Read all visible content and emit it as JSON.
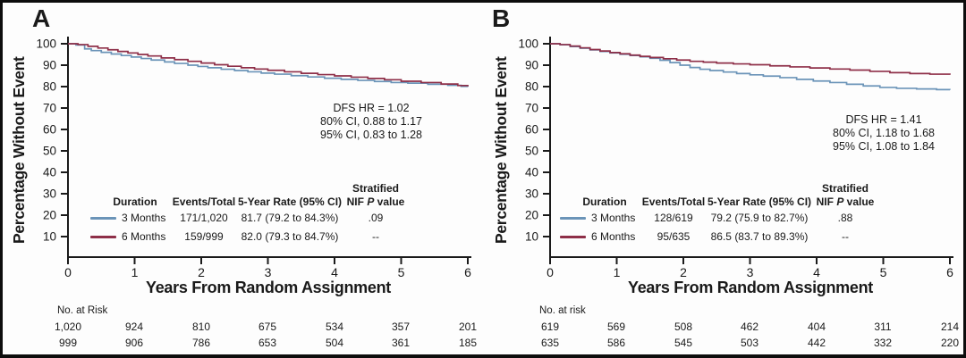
{
  "figure": {
    "panels": [
      {
        "label": "A",
        "y_axis": {
          "title": "Percentage Without Event"
        },
        "x_axis": {
          "title": "Years From Random Assignment"
        },
        "annotation": [
          "DFS HR = 1.02",
          "80% CI, 0.88 to 1.17",
          "95% CI, 0.83 to 1.28"
        ],
        "table": {
          "headers": {
            "stratified": "Stratified",
            "duration": "Duration",
            "events": "Events/Total",
            "rate": "5-Year Rate (95% CI)",
            "nif": "NIF",
            "p": "P",
            "value": "value"
          },
          "rows": [
            {
              "duration": "3 Months",
              "events": "171/1,020",
              "rate": "81.7 (79.2 to 84.3%)",
              "p": ".09"
            },
            {
              "duration": "6 Months",
              "events": "159/999",
              "rate": "82.0 (79.3 to 84.7%)",
              "p": "--"
            }
          ]
        },
        "risk": {
          "label": "No. at Risk",
          "rows": [
            [
              "1,020",
              "924",
              "810",
              "675",
              "534",
              "357",
              "201"
            ],
            [
              "999",
              "906",
              "786",
              "653",
              "504",
              "361",
              "185"
            ]
          ]
        }
      },
      {
        "label": "B",
        "y_axis": {
          "title": "Percentage Without Event"
        },
        "x_axis": {
          "title": "Years From Random Assignment"
        },
        "annotation": [
          "DFS HR = 1.41",
          "80% CI, 1.18 to 1.68",
          "95% CI, 1.08 to 1.84"
        ],
        "table": {
          "headers": {
            "stratified": "Stratified",
            "duration": "Duration",
            "events": "Events/Total",
            "rate": "5-Year Rate (95% CI)",
            "nif": "NIF",
            "p": "P",
            "value": "value"
          },
          "rows": [
            {
              "duration": "3 Months",
              "events": "128/619",
              "rate": "79.2 (75.9 to 82.7%)",
              "p": ".88"
            },
            {
              "duration": "6 Months",
              "events": "95/635",
              "rate": "86.5 (83.7 to 89.3%)",
              "p": "--"
            }
          ]
        },
        "risk": {
          "label": "No. at risk",
          "rows": [
            [
              "619",
              "569",
              "508",
              "462",
              "404",
              "311",
              "214"
            ],
            [
              "635",
              "586",
              "545",
              "503",
              "442",
              "332",
              "220"
            ]
          ]
        }
      }
    ]
  },
  "colors": {
    "three_months": "#6b94b8",
    "six_months": "#8e2f48",
    "axis": "#1a1a1a"
  },
  "chart_data": [
    {
      "type": "line",
      "subtype": "kaplan-meier-step",
      "title": "A",
      "xlabel": "Years From Random Assignment",
      "ylabel": "Percentage Without Event",
      "xlim": [
        0,
        6
      ],
      "ylim": [
        0,
        100
      ],
      "xticks": [
        0,
        1,
        2,
        3,
        4,
        5,
        6
      ],
      "yticks": [
        100,
        90,
        80,
        70,
        60,
        50,
        40,
        30,
        20,
        10
      ],
      "grid": false,
      "legend_position": "bottom-left table",
      "annotations": [
        "DFS HR = 1.02",
        "80% CI, 0.88 to 1.17",
        "95% CI, 0.83 to 1.28"
      ],
      "series": [
        {
          "name": "3 Months",
          "color": "#6b94b8",
          "events_total": "171/1,020",
          "five_year_rate": "81.7 (79.2 to 84.3%)",
          "p_value": ".09",
          "x": [
            0,
            0.12,
            0.25,
            0.35,
            0.5,
            0.65,
            0.8,
            0.95,
            1.1,
            1.25,
            1.45,
            1.6,
            1.8,
            1.95,
            2.1,
            2.3,
            2.5,
            2.7,
            2.9,
            3.1,
            3.35,
            3.6,
            3.85,
            4.1,
            4.35,
            4.6,
            4.85,
            5.1,
            5.4,
            5.7,
            5.9,
            6
          ],
          "y": [
            100,
            99.4,
            97.6,
            96.8,
            96,
            95.2,
            94.5,
            93.8,
            93.1,
            92.4,
            91.5,
            90.8,
            90,
            89.4,
            88.8,
            88.1,
            87.5,
            86.9,
            86.3,
            85.8,
            85.1,
            84.5,
            83.9,
            83.4,
            82.9,
            82.4,
            81.9,
            81.6,
            81.1,
            80.6,
            80.1,
            79.9
          ]
        },
        {
          "name": "6 Months",
          "color": "#8e2f48",
          "events_total": "159/999",
          "five_year_rate": "82.0 (79.3 to 84.7%)",
          "p_value": "--",
          "x": [
            0,
            0.15,
            0.3,
            0.45,
            0.6,
            0.75,
            0.9,
            1.05,
            1.2,
            1.4,
            1.6,
            1.8,
            2,
            2.2,
            2.4,
            2.6,
            2.8,
            3,
            3.25,
            3.5,
            3.75,
            4,
            4.25,
            4.5,
            4.75,
            5,
            5.3,
            5.6,
            5.85,
            6
          ],
          "y": [
            100,
            99.6,
            98.8,
            98,
            97.2,
            96.4,
            95.7,
            95,
            94.3,
            93.4,
            92.6,
            91.8,
            91,
            90.2,
            89.5,
            88.8,
            88.2,
            87.6,
            86.9,
            86.2,
            85.6,
            85,
            84.4,
            83.8,
            83.2,
            82.5,
            81.9,
            81.2,
            80.5,
            80.1
          ]
        }
      ],
      "at_risk": {
        "label": "No. at Risk",
        "times": [
          0,
          1,
          2,
          3,
          4,
          5,
          6
        ],
        "rows": [
          [
            1020,
            924,
            810,
            675,
            534,
            357,
            201
          ],
          [
            999,
            906,
            786,
            653,
            504,
            361,
            185
          ]
        ]
      }
    },
    {
      "type": "line",
      "subtype": "kaplan-meier-step",
      "title": "B",
      "xlabel": "Years From Random Assignment",
      "ylabel": "Percentage Without Event",
      "xlim": [
        0,
        6
      ],
      "ylim": [
        0,
        100
      ],
      "xticks": [
        0,
        1,
        2,
        3,
        4,
        5,
        6
      ],
      "yticks": [
        100,
        90,
        80,
        70,
        60,
        50,
        40,
        30,
        20,
        10
      ],
      "grid": false,
      "legend_position": "bottom-left table",
      "annotations": [
        "DFS HR = 1.41",
        "80% CI, 1.18 to 1.68",
        "95% CI, 1.08 to 1.84"
      ],
      "series": [
        {
          "name": "3 Months",
          "color": "#6b94b8",
          "events_total": "128/619",
          "five_year_rate": "79.2 (75.9 to 82.7%)",
          "p_value": ".88",
          "x": [
            0,
            0.15,
            0.3,
            0.45,
            0.6,
            0.75,
            0.9,
            1.05,
            1.2,
            1.35,
            1.5,
            1.65,
            1.8,
            1.95,
            2.1,
            2.25,
            2.4,
            2.6,
            2.8,
            3,
            3.2,
            3.45,
            3.7,
            3.95,
            4.2,
            4.45,
            4.7,
            4.95,
            5.2,
            5.5,
            5.8,
            6
          ],
          "y": [
            100,
            99.5,
            98.7,
            97.9,
            97.1,
            96.4,
            95.7,
            95.1,
            94.5,
            93.9,
            93.2,
            92.3,
            91.2,
            90,
            88.9,
            88.1,
            87.5,
            86.8,
            86.1,
            85.5,
            84.9,
            84.2,
            83.4,
            82.6,
            81.9,
            81.1,
            80.3,
            79.6,
            79.2,
            78.9,
            78.6,
            78.5
          ]
        },
        {
          "name": "6 Months",
          "color": "#8e2f48",
          "events_total": "95/635",
          "five_year_rate": "86.5 (83.7 to 89.3%)",
          "p_value": "--",
          "x": [
            0,
            0.15,
            0.3,
            0.45,
            0.6,
            0.75,
            0.9,
            1.05,
            1.2,
            1.35,
            1.5,
            1.7,
            1.9,
            2.1,
            2.3,
            2.5,
            2.75,
            3,
            3.3,
            3.6,
            3.9,
            4.2,
            4.5,
            4.8,
            5.1,
            5.4,
            5.7,
            6
          ],
          "y": [
            100,
            99.6,
            98.9,
            98.1,
            97.3,
            96.6,
            95.9,
            95.3,
            94.7,
            94.1,
            93.6,
            93,
            92.4,
            91.8,
            91.4,
            91,
            90.6,
            90.2,
            89.7,
            89.2,
            88.7,
            88.2,
            87.7,
            87.1,
            86.5,
            86.1,
            85.8,
            85.5
          ]
        }
      ],
      "at_risk": {
        "label": "No. at risk",
        "times": [
          0,
          1,
          2,
          3,
          4,
          5,
          6
        ],
        "rows": [
          [
            619,
            569,
            508,
            462,
            404,
            311,
            214
          ],
          [
            635,
            586,
            545,
            503,
            442,
            332,
            220
          ]
        ]
      }
    }
  ]
}
